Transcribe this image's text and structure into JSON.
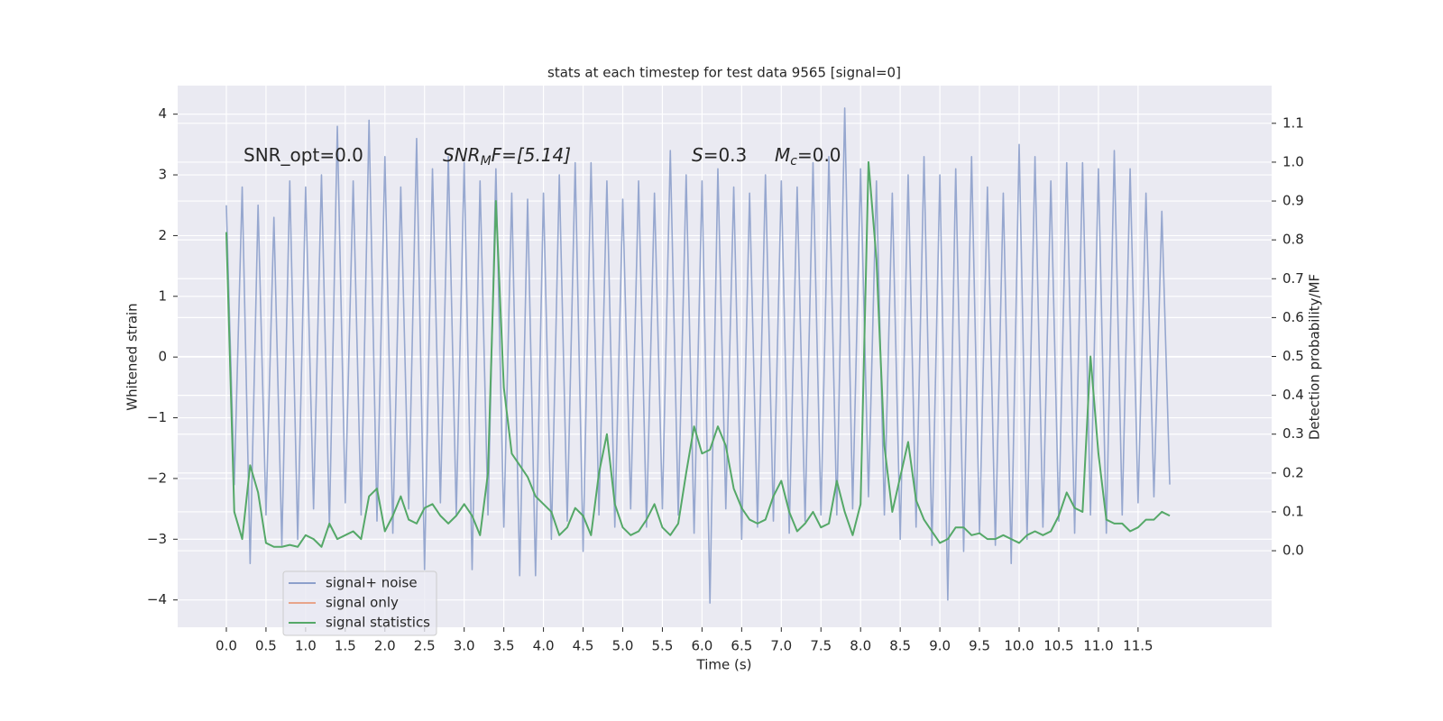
{
  "chart_data": {
    "type": "line",
    "title": "stats at each timestep for test data 9565 [signal=0]",
    "xlabel": "Time (s)",
    "ylabel": "Whitened strain",
    "y2label": "Detection probability/MF",
    "annotations": [
      [
        "SNR_opt=0.0"
      ],
      [
        "SNR",
        "M",
        "F=[5.14]"
      ],
      [
        "S",
        "=0.3"
      ],
      [
        "M",
        "c",
        "=0.0"
      ]
    ],
    "xlim": [
      -0.614,
      13.185
    ],
    "ylim": [
      -4.45,
      4.47
    ],
    "y2lim": [
      -0.197,
      1.197
    ],
    "xticks": [
      {
        "value": 0,
        "label": "0.0"
      },
      {
        "value": 0.5,
        "label": "0.5"
      },
      {
        "value": 1,
        "label": "1.0"
      },
      {
        "value": 1.5,
        "label": "1.5"
      },
      {
        "value": 2,
        "label": "2.0"
      },
      {
        "value": 2.5,
        "label": "2.5"
      },
      {
        "value": 3,
        "label": "3.0"
      },
      {
        "value": 3.5,
        "label": "3.5"
      },
      {
        "value": 4,
        "label": "4.0"
      },
      {
        "value": 4.5,
        "label": "4.5"
      },
      {
        "value": 5,
        "label": "5.0"
      },
      {
        "value": 5.5,
        "label": "5.5"
      },
      {
        "value": 6,
        "label": "6.0"
      },
      {
        "value": 6.5,
        "label": "6.5"
      },
      {
        "value": 7,
        "label": "7.0"
      },
      {
        "value": 7.5,
        "label": "7.5"
      },
      {
        "value": 8,
        "label": "8.0"
      },
      {
        "value": 8.5,
        "label": "8.5"
      },
      {
        "value": 9,
        "label": "9.0"
      },
      {
        "value": 9.5,
        "label": "9.5"
      },
      {
        "value": 10,
        "label": "10.0"
      },
      {
        "value": 10.5,
        "label": "10.5"
      },
      {
        "value": 11,
        "label": "11.0"
      },
      {
        "value": 11.5,
        "label": "11.5"
      }
    ],
    "yticks": [
      {
        "value": -4,
        "label": "−4"
      },
      {
        "value": -3,
        "label": "−3"
      },
      {
        "value": -2,
        "label": "−2"
      },
      {
        "value": -1,
        "label": "−1"
      },
      0,
      1,
      2,
      3,
      4
    ],
    "y2ticks": [
      {
        "value": 0,
        "label": "0.0"
      },
      {
        "value": 0.1,
        "label": "0.1"
      },
      {
        "value": 0.2,
        "label": "0.2"
      },
      {
        "value": 0.3,
        "label": "0.3"
      },
      {
        "value": 0.4,
        "label": "0.4"
      },
      {
        "value": 0.5,
        "label": "0.5"
      },
      {
        "value": 0.6,
        "label": "0.6"
      },
      {
        "value": 0.7,
        "label": "0.7"
      },
      {
        "value": 0.8,
        "label": "0.8"
      },
      {
        "value": 0.9,
        "label": "0.9"
      },
      {
        "value": 1,
        "label": "1.0"
      },
      {
        "value": 1.1,
        "label": "1.1"
      }
    ],
    "grid": true,
    "legend": "lower left",
    "series": [
      {
        "name": "signal+ noise",
        "color": "#8da0cb",
        "x": [
          0,
          0.1,
          0.2,
          0.3,
          0.4,
          0.5,
          0.6,
          0.7,
          0.8,
          0.9,
          1,
          1.1,
          1.2,
          1.3,
          1.4,
          1.5,
          1.6,
          1.7,
          1.8,
          1.9,
          2,
          2.1,
          2.2,
          2.3,
          2.4,
          2.5,
          2.6,
          2.7,
          2.8,
          2.9,
          3,
          3.1,
          3.2,
          3.3,
          3.4,
          3.5,
          3.6,
          3.7,
          3.8,
          3.9,
          4,
          4.1,
          4.2,
          4.3,
          4.4,
          4.5,
          4.6,
          4.7,
          4.8,
          4.9,
          5,
          5.1,
          5.2,
          5.3,
          5.4,
          5.5,
          5.6,
          5.7,
          5.8,
          5.9,
          6,
          6.1,
          6.2,
          6.3,
          6.4,
          6.5,
          6.6,
          6.7,
          6.8,
          6.9,
          7,
          7.1,
          7.2,
          7.3,
          7.4,
          7.5,
          7.6,
          7.7,
          7.8,
          7.9,
          8,
          8.1,
          8.2,
          8.3,
          8.4,
          8.5,
          8.6,
          8.7,
          8.8,
          8.9,
          9,
          9.1,
          9.2,
          9.3,
          9.4,
          9.5,
          9.6,
          9.7,
          9.8,
          9.9,
          10,
          10.1,
          10.2,
          10.3,
          10.4,
          10.5,
          10.6,
          10.7,
          10.8,
          10.9,
          11,
          11.1,
          11.2,
          11.3,
          11.4,
          11.5,
          11.6,
          11.7,
          11.8,
          11.9
        ],
        "values": [
          2.5,
          -2.1,
          2.8,
          -3.4,
          2.5,
          -2.6,
          2.3,
          -3.1,
          2.9,
          -3.0,
          2.8,
          -2.5,
          3.0,
          -2.8,
          3.8,
          -2.4,
          2.9,
          -2.6,
          3.9,
          -2.7,
          3.3,
          -2.9,
          2.8,
          -2.5,
          3.6,
          -3.5,
          3.1,
          -2.4,
          3.3,
          -2.6,
          3.2,
          -3.5,
          2.9,
          -2.6,
          3.1,
          -2.8,
          2.7,
          -3.6,
          2.6,
          -3.6,
          2.7,
          -3.0,
          3.0,
          -2.7,
          3.2,
          -3.2,
          3.2,
          -2.6,
          2.9,
          -2.8,
          2.6,
          -2.5,
          2.9,
          -2.8,
          2.7,
          -2.5,
          3.4,
          -2.6,
          3.0,
          -2.9,
          2.9,
          -4.05,
          3.1,
          -2.5,
          2.8,
          -3.0,
          2.7,
          -2.8,
          3.0,
          -2.7,
          2.9,
          -2.9,
          2.8,
          -2.7,
          3.2,
          -2.6,
          3.3,
          -2.6,
          4.1,
          -2.5,
          3.1,
          -2.3,
          2.9,
          -2.6,
          2.7,
          -3.0,
          3.0,
          -2.8,
          3.3,
          -3.1,
          3.0,
          -4.0,
          3.1,
          -3.2,
          3.3,
          -2.9,
          2.8,
          -3.1,
          2.7,
          -3.4,
          3.5,
          -3.0,
          3.3,
          -2.8,
          2.9,
          -2.7,
          3.2,
          -2.9,
          3.2,
          -2.6,
          3.1,
          -2.9,
          3.4,
          -2.6,
          3.1,
          -2.4,
          2.7,
          -2.3,
          2.4,
          -2.1
        ]
      },
      {
        "name": "signal only",
        "color": "#e8a48a",
        "x": [],
        "values": []
      },
      {
        "name": "signal statistics",
        "color": "#55a868",
        "axis": "y2",
        "x": [
          0,
          0.1,
          0.2,
          0.3,
          0.4,
          0.5,
          0.6,
          0.7,
          0.8,
          0.9,
          1,
          1.1,
          1.2,
          1.3,
          1.4,
          1.5,
          1.6,
          1.7,
          1.8,
          1.9,
          2,
          2.1,
          2.2,
          2.3,
          2.4,
          2.5,
          2.6,
          2.7,
          2.8,
          2.9,
          3,
          3.1,
          3.2,
          3.3,
          3.4,
          3.5,
          3.6,
          3.7,
          3.8,
          3.9,
          4,
          4.1,
          4.2,
          4.3,
          4.4,
          4.5,
          4.6,
          4.7,
          4.8,
          4.9,
          5,
          5.1,
          5.2,
          5.3,
          5.4,
          5.5,
          5.6,
          5.7,
          5.8,
          5.9,
          6,
          6.1,
          6.2,
          6.3,
          6.4,
          6.5,
          6.6,
          6.7,
          6.8,
          6.9,
          7,
          7.1,
          7.2,
          7.3,
          7.4,
          7.5,
          7.6,
          7.7,
          7.8,
          7.9,
          8,
          8.1,
          8.2,
          8.3,
          8.4,
          8.5,
          8.6,
          8.7,
          8.8,
          8.9,
          9,
          9.1,
          9.2,
          9.3,
          9.4,
          9.5,
          9.6,
          9.7,
          9.8,
          9.9,
          10,
          10.1,
          10.2,
          10.3,
          10.4,
          10.5,
          10.6,
          10.7,
          10.8,
          10.9,
          11,
          11.1,
          11.2,
          11.3,
          11.4,
          11.5,
          11.6,
          11.7,
          11.8,
          11.9
        ],
        "values": [
          0.82,
          0.1,
          0.03,
          0.22,
          0.15,
          0.02,
          0.01,
          0.01,
          0.015,
          0.01,
          0.04,
          0.03,
          0.01,
          0.07,
          0.03,
          0.04,
          0.05,
          0.03,
          0.14,
          0.16,
          0.05,
          0.09,
          0.14,
          0.08,
          0.07,
          0.11,
          0.12,
          0.09,
          0.07,
          0.09,
          0.12,
          0.09,
          0.04,
          0.2,
          0.9,
          0.42,
          0.25,
          0.22,
          0.19,
          0.14,
          0.12,
          0.1,
          0.04,
          0.06,
          0.11,
          0.09,
          0.04,
          0.2,
          0.3,
          0.12,
          0.06,
          0.04,
          0.05,
          0.08,
          0.12,
          0.06,
          0.04,
          0.07,
          0.2,
          0.32,
          0.25,
          0.26,
          0.32,
          0.27,
          0.16,
          0.11,
          0.08,
          0.07,
          0.08,
          0.14,
          0.18,
          0.1,
          0.05,
          0.07,
          0.1,
          0.06,
          0.07,
          0.18,
          0.1,
          0.04,
          0.12,
          1.0,
          0.75,
          0.27,
          0.1,
          0.19,
          0.28,
          0.13,
          0.08,
          0.05,
          0.02,
          0.03,
          0.06,
          0.06,
          0.04,
          0.045,
          0.03,
          0.03,
          0.04,
          0.03,
          0.02,
          0.04,
          0.05,
          0.04,
          0.05,
          0.09,
          0.15,
          0.11,
          0.1,
          0.5,
          0.25,
          0.08,
          0.07,
          0.07,
          0.05,
          0.06,
          0.08,
          0.08,
          0.1,
          0.09
        ]
      }
    ]
  }
}
